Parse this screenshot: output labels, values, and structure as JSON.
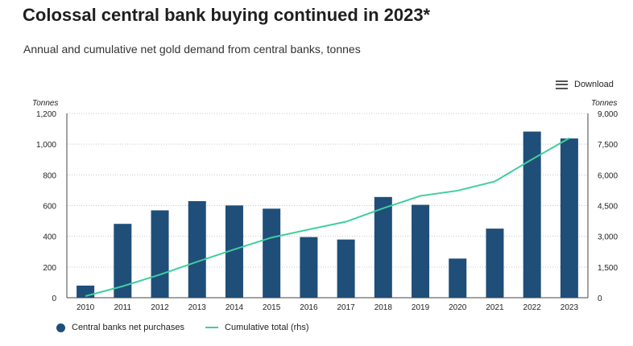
{
  "header": {
    "title": "Colossal central bank buying continued in 2023*",
    "subtitle": "Annual and cumulative net gold demand from central banks, tonnes"
  },
  "toolbar": {
    "download_label": "Download",
    "download_icon": "hamburger-menu-icon"
  },
  "colors": {
    "bar": "#1f4e79",
    "line": "#3ecf9e",
    "grid": "#c8c8c8",
    "axis": "#444444"
  },
  "chart_data": {
    "type": "bar+line",
    "categories": [
      "2010",
      "2011",
      "2012",
      "2013",
      "2014",
      "2015",
      "2016",
      "2017",
      "2018",
      "2019",
      "2020",
      "2021",
      "2022",
      "2023"
    ],
    "series": [
      {
        "name": "Central banks net purchases",
        "type": "bar",
        "axis": "left",
        "values": [
          79,
          481,
          569,
          629,
          601,
          580,
          395,
          379,
          656,
          605,
          255,
          450,
          1082,
          1037
        ]
      },
      {
        "name": "Cumulative total (rhs)",
        "type": "line",
        "axis": "right",
        "values": [
          79,
          560,
          1129,
          1758,
          2359,
          2939,
          3334,
          3713,
          4369,
          4974,
          5229,
          5679,
          6761,
          7798
        ]
      }
    ],
    "ylabel": "Tonnes",
    "ylabel_right": "Tonnes",
    "ylim": [
      0,
      1200
    ],
    "ylim_right": [
      0,
      9000
    ],
    "yticks": [
      "0",
      "200",
      "400",
      "600",
      "800",
      "1,000",
      "1,200"
    ],
    "yticks_right": [
      "0",
      "1,500",
      "3,000",
      "4,500",
      "6,000",
      "7,500",
      "9,000"
    ],
    "grid": true,
    "legend_position": "bottom-left"
  }
}
